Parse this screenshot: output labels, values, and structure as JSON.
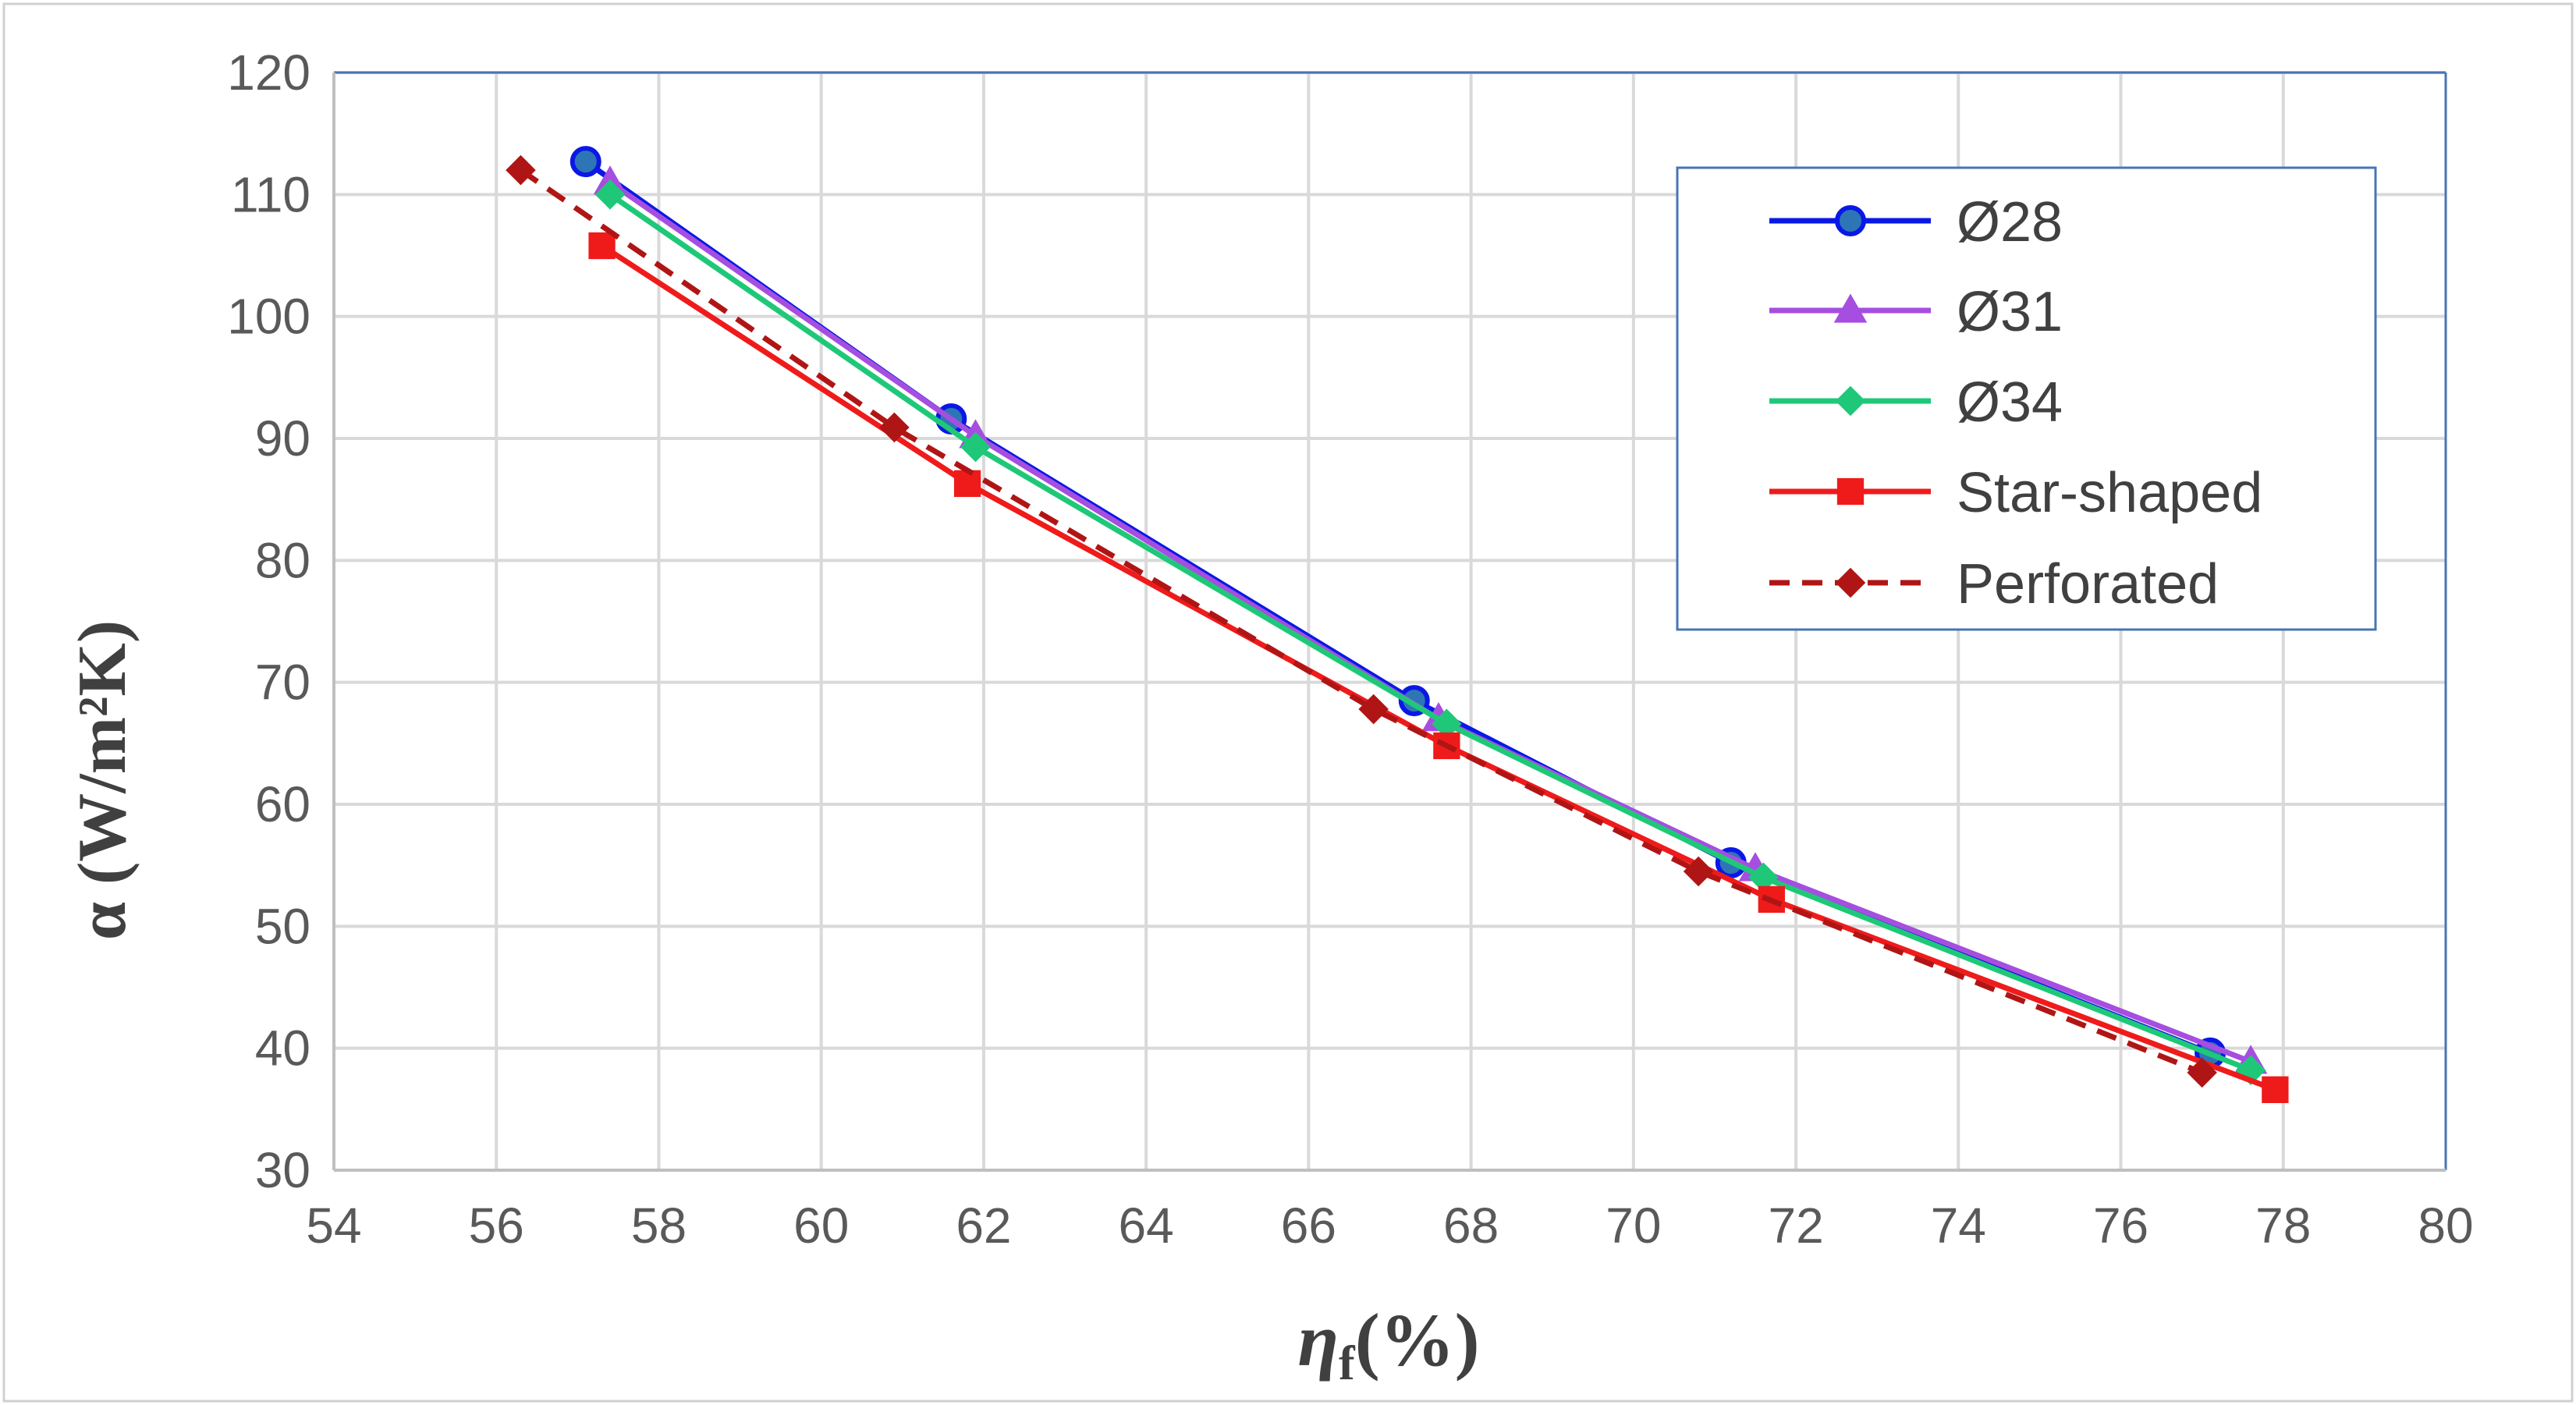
{
  "chart_data": {
    "type": "line",
    "title": "",
    "xlabel": "ηf(%)",
    "xlabel_main": "η",
    "xlabel_sub": "f",
    "xlabel_tail": "(%)",
    "ylabel": "α (W/m²K)",
    "xlim": [
      54,
      80
    ],
    "ylim": [
      30,
      120
    ],
    "xticks": [
      54,
      56,
      58,
      60,
      62,
      64,
      66,
      68,
      70,
      72,
      74,
      76,
      78,
      80
    ],
    "yticks": [
      30,
      40,
      50,
      60,
      70,
      80,
      90,
      100,
      110,
      120
    ],
    "grid": true,
    "legend_position": "top-right",
    "series": [
      {
        "name": "Ø28",
        "color": "#0a18e6",
        "marker": "circle",
        "dash": "solid",
        "x": [
          57.1,
          61.6,
          67.3,
          71.2,
          77.1
        ],
        "y": [
          112.7,
          91.6,
          68.5,
          55.2,
          39.6
        ]
      },
      {
        "name": "Ø31",
        "color": "#a64ee0",
        "marker": "triangle",
        "dash": "solid",
        "x": [
          57.4,
          61.9,
          67.6,
          71.5,
          77.6
        ],
        "y": [
          111.0,
          90.2,
          67.0,
          54.7,
          38.9
        ]
      },
      {
        "name": "Ø34",
        "color": "#1fc878",
        "marker": "diamond",
        "dash": "solid",
        "x": [
          57.4,
          61.9,
          67.7,
          71.6,
          77.6
        ],
        "y": [
          110.0,
          89.3,
          66.6,
          54.0,
          38.2
        ]
      },
      {
        "name": "Star-shaped",
        "color": "#ef1b1b",
        "marker": "square",
        "dash": "solid",
        "x": [
          57.3,
          61.8,
          67.7,
          71.7,
          77.9
        ],
        "y": [
          105.8,
          86.3,
          64.8,
          52.2,
          36.6
        ]
      },
      {
        "name": "Perforated",
        "color": "#b01515",
        "marker": "diamond",
        "dash": "dashed",
        "x": [
          56.3,
          60.9,
          66.8,
          70.8,
          77.0
        ],
        "y": [
          112.0,
          90.9,
          67.8,
          54.5,
          38.0
        ]
      }
    ]
  }
}
